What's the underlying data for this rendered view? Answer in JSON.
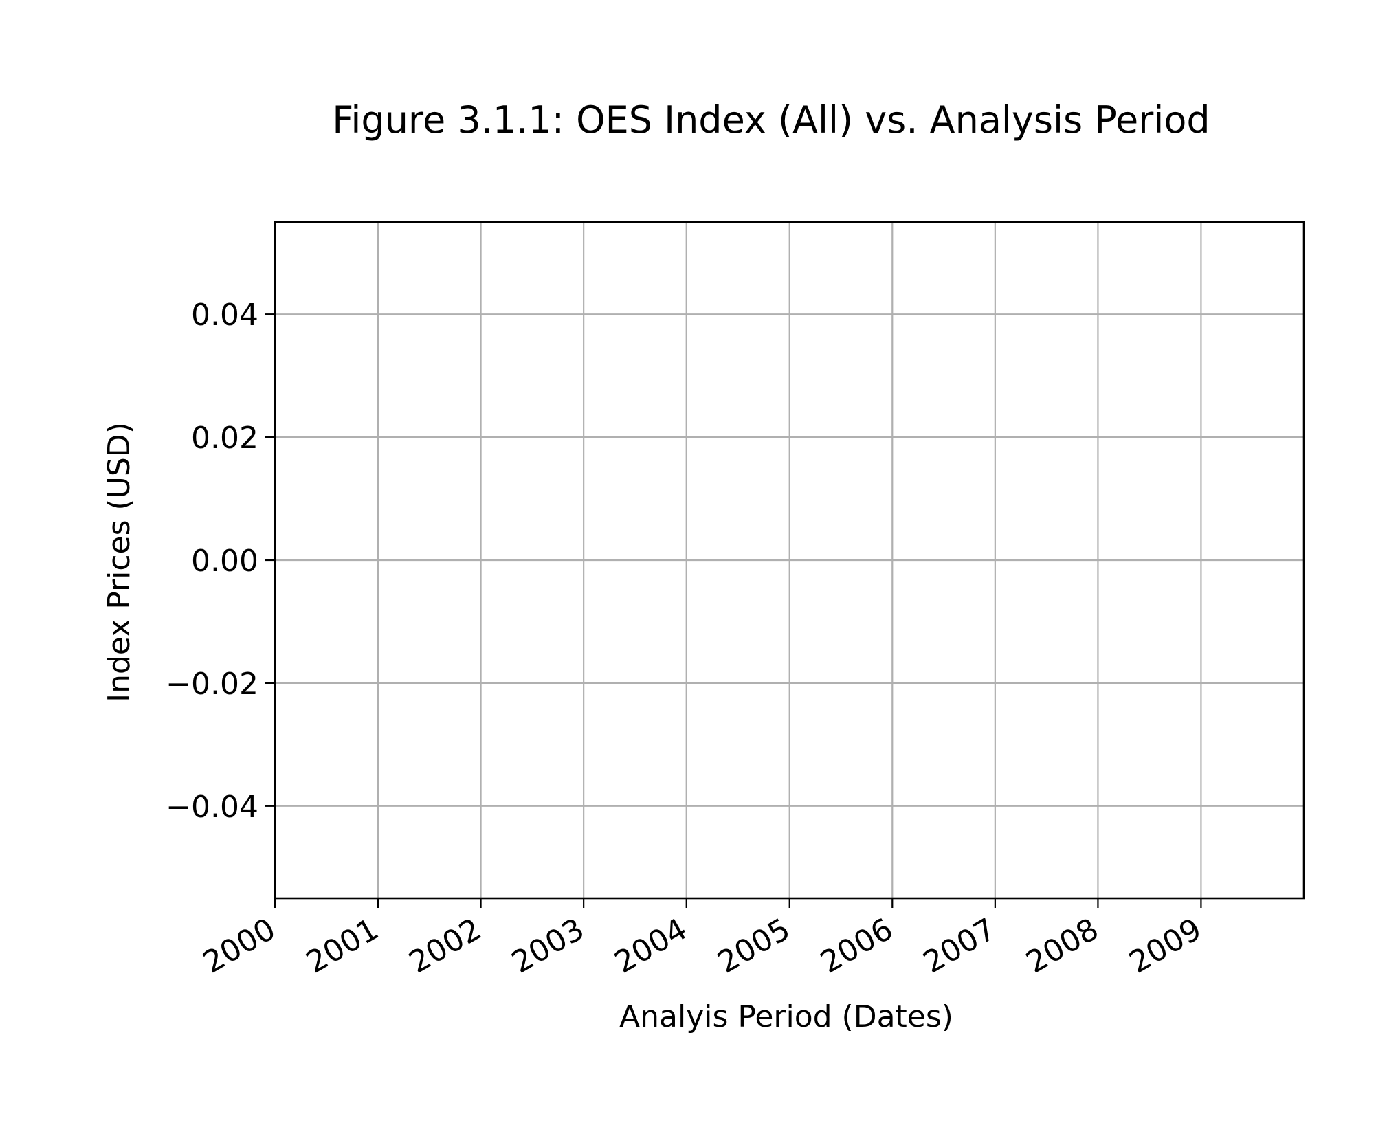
{
  "chart_data": {
    "type": "line",
    "title": "Figure 3.1.1: OES Index (All) vs. Analysis Period",
    "xlabel": "Analyis Period (Dates)",
    "ylabel": "Index Prices (USD)",
    "x_ticks": [
      "2000",
      "2001",
      "2002",
      "2003",
      "2004",
      "2005",
      "2006",
      "2007",
      "2008",
      "2009"
    ],
    "y_ticks": [
      {
        "value": 0.04,
        "label": "0.04"
      },
      {
        "value": 0.02,
        "label": "0.02"
      },
      {
        "value": 0.0,
        "label": "0.00"
      },
      {
        "value": -0.02,
        "label": "−0.02"
      },
      {
        "value": -0.04,
        "label": "−0.04"
      }
    ],
    "xlim": [
      "2000",
      "2010"
    ],
    "ylim": [
      -0.055,
      0.055
    ],
    "grid": true,
    "x_tick_rotation": "30 degrees",
    "series": []
  }
}
